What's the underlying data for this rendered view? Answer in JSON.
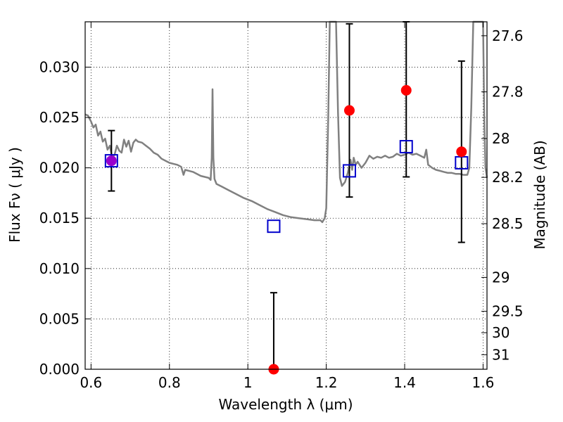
{
  "chart_data": {
    "type": "scatter",
    "xlabel": "Wavelength  λ (μm)",
    "ylabel_left": "Flux  Fν  ( μJy )",
    "ylabel_right": "Magnitude (AB)",
    "xlim": [
      0.585,
      1.61
    ],
    "ylim": [
      0.0,
      0.0345
    ],
    "grid": true,
    "x_ticks": [
      {
        "value": 0.6,
        "label": "0.6"
      },
      {
        "value": 0.8,
        "label": "0.8"
      },
      {
        "value": 1.0,
        "label": "1"
      },
      {
        "value": 1.2,
        "label": "1.2"
      },
      {
        "value": 1.4,
        "label": "1.4"
      },
      {
        "value": 1.6,
        "label": "1.6"
      }
    ],
    "y_ticks": [
      {
        "value": 0.0,
        "label": "0.000"
      },
      {
        "value": 0.005,
        "label": "0.005"
      },
      {
        "value": 0.01,
        "label": "0.010"
      },
      {
        "value": 0.015,
        "label": "0.015"
      },
      {
        "value": 0.02,
        "label": "0.020"
      },
      {
        "value": 0.025,
        "label": "0.025"
      },
      {
        "value": 0.03,
        "label": "0.030"
      }
    ],
    "mag_ticks": [
      {
        "mag": 27.6,
        "label": "27.6"
      },
      {
        "mag": 27.8,
        "label": "27.8"
      },
      {
        "mag": 28.0,
        "label": "28"
      },
      {
        "mag": 28.2,
        "label": "28.2"
      },
      {
        "mag": 28.5,
        "label": "28.5"
      },
      {
        "mag": 29.0,
        "label": "29"
      },
      {
        "mag": 29.5,
        "label": "29.5"
      },
      {
        "mag": 30.0,
        "label": "30"
      },
      {
        "mag": 31.0,
        "label": "31"
      }
    ],
    "observed": [
      {
        "x": 0.652,
        "y": 0.0207,
        "err": 0.003,
        "color": "#9900cc"
      },
      {
        "x": 1.066,
        "y": 0.0,
        "err": 0.0076,
        "color": "#ff0000"
      },
      {
        "x": 1.259,
        "y": 0.0257,
        "err": 0.0086,
        "color": "#ff0000"
      },
      {
        "x": 1.404,
        "y": 0.0277,
        "err": 0.0086,
        "color": "#ff0000"
      },
      {
        "x": 1.545,
        "y": 0.0216,
        "err": 0.009,
        "color": "#ff0000"
      }
    ],
    "model_points": [
      {
        "x": 0.652,
        "y": 0.0207
      },
      {
        "x": 1.066,
        "y": 0.0142
      },
      {
        "x": 1.259,
        "y": 0.0197
      },
      {
        "x": 1.404,
        "y": 0.0221
      },
      {
        "x": 1.545,
        "y": 0.0205
      }
    ],
    "sed_curve": [
      [
        0.585,
        0.0253
      ],
      [
        0.592,
        0.0252
      ],
      [
        0.6,
        0.0246
      ],
      [
        0.606,
        0.024
      ],
      [
        0.612,
        0.0243
      ],
      [
        0.618,
        0.0232
      ],
      [
        0.624,
        0.0236
      ],
      [
        0.63,
        0.0226
      ],
      [
        0.636,
        0.0229
      ],
      [
        0.642,
        0.0218
      ],
      [
        0.648,
        0.0222
      ],
      [
        0.654,
        0.021
      ],
      [
        0.66,
        0.0213
      ],
      [
        0.666,
        0.0222
      ],
      [
        0.672,
        0.0217
      ],
      [
        0.678,
        0.0215
      ],
      [
        0.684,
        0.0228
      ],
      [
        0.69,
        0.0221
      ],
      [
        0.696,
        0.0227
      ],
      [
        0.702,
        0.0216
      ],
      [
        0.708,
        0.0225
      ],
      [
        0.714,
        0.0228
      ],
      [
        0.72,
        0.0226
      ],
      [
        0.73,
        0.0225
      ],
      [
        0.74,
        0.0222
      ],
      [
        0.75,
        0.0219
      ],
      [
        0.76,
        0.0215
      ],
      [
        0.77,
        0.0213
      ],
      [
        0.78,
        0.0209
      ],
      [
        0.79,
        0.0207
      ],
      [
        0.8,
        0.0205
      ],
      [
        0.81,
        0.0204
      ],
      [
        0.82,
        0.0203
      ],
      [
        0.83,
        0.0201
      ],
      [
        0.836,
        0.0193
      ],
      [
        0.84,
        0.0198
      ],
      [
        0.85,
        0.0197
      ],
      [
        0.86,
        0.0196
      ],
      [
        0.87,
        0.0194
      ],
      [
        0.88,
        0.0192
      ],
      [
        0.89,
        0.0191
      ],
      [
        0.9,
        0.019
      ],
      [
        0.905,
        0.0188
      ],
      [
        0.908,
        0.021
      ],
      [
        0.91,
        0.0278
      ],
      [
        0.912,
        0.021
      ],
      [
        0.915,
        0.0189
      ],
      [
        0.92,
        0.0184
      ],
      [
        0.935,
        0.0181
      ],
      [
        0.95,
        0.0178
      ],
      [
        0.97,
        0.0174
      ],
      [
        0.99,
        0.017
      ],
      [
        1.01,
        0.0167
      ],
      [
        1.03,
        0.0163
      ],
      [
        1.05,
        0.0159
      ],
      [
        1.07,
        0.0156
      ],
      [
        1.09,
        0.0153
      ],
      [
        1.11,
        0.0151
      ],
      [
        1.13,
        0.015
      ],
      [
        1.15,
        0.0149
      ],
      [
        1.17,
        0.0148
      ],
      [
        1.185,
        0.0148
      ],
      [
        1.19,
        0.0146
      ],
      [
        1.196,
        0.015
      ],
      [
        1.2,
        0.016
      ],
      [
        1.205,
        0.025
      ],
      [
        1.209,
        0.0345
      ],
      [
        1.225,
        0.0345
      ],
      [
        1.23,
        0.0255
      ],
      [
        1.235,
        0.019
      ],
      [
        1.24,
        0.0182
      ],
      [
        1.248,
        0.0186
      ],
      [
        1.255,
        0.0195
      ],
      [
        1.262,
        0.0208
      ],
      [
        1.266,
        0.0198
      ],
      [
        1.27,
        0.021
      ],
      [
        1.275,
        0.0203
      ],
      [
        1.28,
        0.0206
      ],
      [
        1.29,
        0.02
      ],
      [
        1.3,
        0.0205
      ],
      [
        1.31,
        0.0212
      ],
      [
        1.32,
        0.0209
      ],
      [
        1.33,
        0.0211
      ],
      [
        1.34,
        0.021
      ],
      [
        1.35,
        0.0212
      ],
      [
        1.36,
        0.021
      ],
      [
        1.37,
        0.0211
      ],
      [
        1.38,
        0.0214
      ],
      [
        1.39,
        0.0212
      ],
      [
        1.4,
        0.0213
      ],
      [
        1.41,
        0.0215
      ],
      [
        1.42,
        0.0213
      ],
      [
        1.43,
        0.0214
      ],
      [
        1.44,
        0.0212
      ],
      [
        1.45,
        0.021
      ],
      [
        1.455,
        0.0218
      ],
      [
        1.46,
        0.0203
      ],
      [
        1.47,
        0.02
      ],
      [
        1.48,
        0.0198
      ],
      [
        1.49,
        0.0197
      ],
      [
        1.5,
        0.0196
      ],
      [
        1.51,
        0.0195
      ],
      [
        1.52,
        0.0195
      ],
      [
        1.53,
        0.0194
      ],
      [
        1.54,
        0.0194
      ],
      [
        1.55,
        0.0193
      ],
      [
        1.56,
        0.0193
      ],
      [
        1.565,
        0.02
      ],
      [
        1.57,
        0.026
      ],
      [
        1.575,
        0.0345
      ],
      [
        1.6,
        0.0345
      ],
      [
        1.603,
        0.025
      ],
      [
        1.606,
        0.02
      ],
      [
        1.61,
        0.019
      ]
    ],
    "colors": {
      "curve": "#808080",
      "model_square": "#0000cc",
      "error_bar": "#000000"
    }
  }
}
